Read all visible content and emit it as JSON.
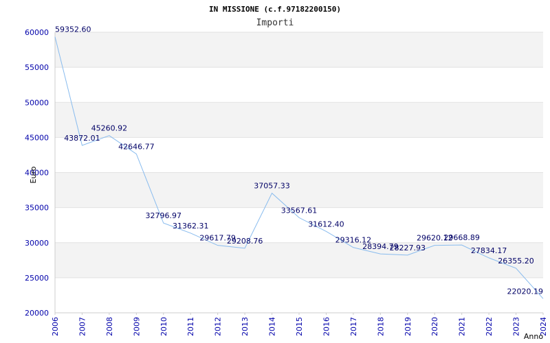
{
  "chart_data": {
    "type": "line",
    "title": "IN MISSIONE (c.f.97182200150)",
    "subtitle": "Importi",
    "ylabel": "Euro",
    "xlabel": "Anno",
    "ylim": [
      20000,
      60000
    ],
    "yticks": [
      20000,
      25000,
      30000,
      35000,
      40000,
      45000,
      50000,
      55000,
      60000
    ],
    "grid": true,
    "line_color": "#88bbee",
    "x": [
      "2006",
      "2007",
      "2008",
      "2009",
      "2010",
      "2011",
      "2012",
      "2013",
      "2014",
      "2015",
      "2016",
      "2017",
      "2018",
      "2019",
      "2020",
      "2021",
      "2022",
      "2023",
      "2024"
    ],
    "values": [
      59352.6,
      43872.01,
      45260.92,
      42646.77,
      32796.97,
      31362.31,
      29617.79,
      29208.76,
      37057.33,
      33567.61,
      31612.4,
      29316.12,
      28394.79,
      28227.93,
      29620.12,
      29668.89,
      27834.17,
      26355.2,
      22020.19
    ],
    "labels": [
      "59352.60",
      "43872.01",
      "45260.92",
      "42646.77",
      "32796.97",
      "31362.31",
      "29617.79",
      "29208.76",
      "37057.33",
      "33567.61",
      "31612.40",
      "29316.12",
      "28394.79",
      "28227.93",
      "29620.12",
      "29668.89",
      "27834.17",
      "26355.20",
      "22020.19"
    ]
  }
}
